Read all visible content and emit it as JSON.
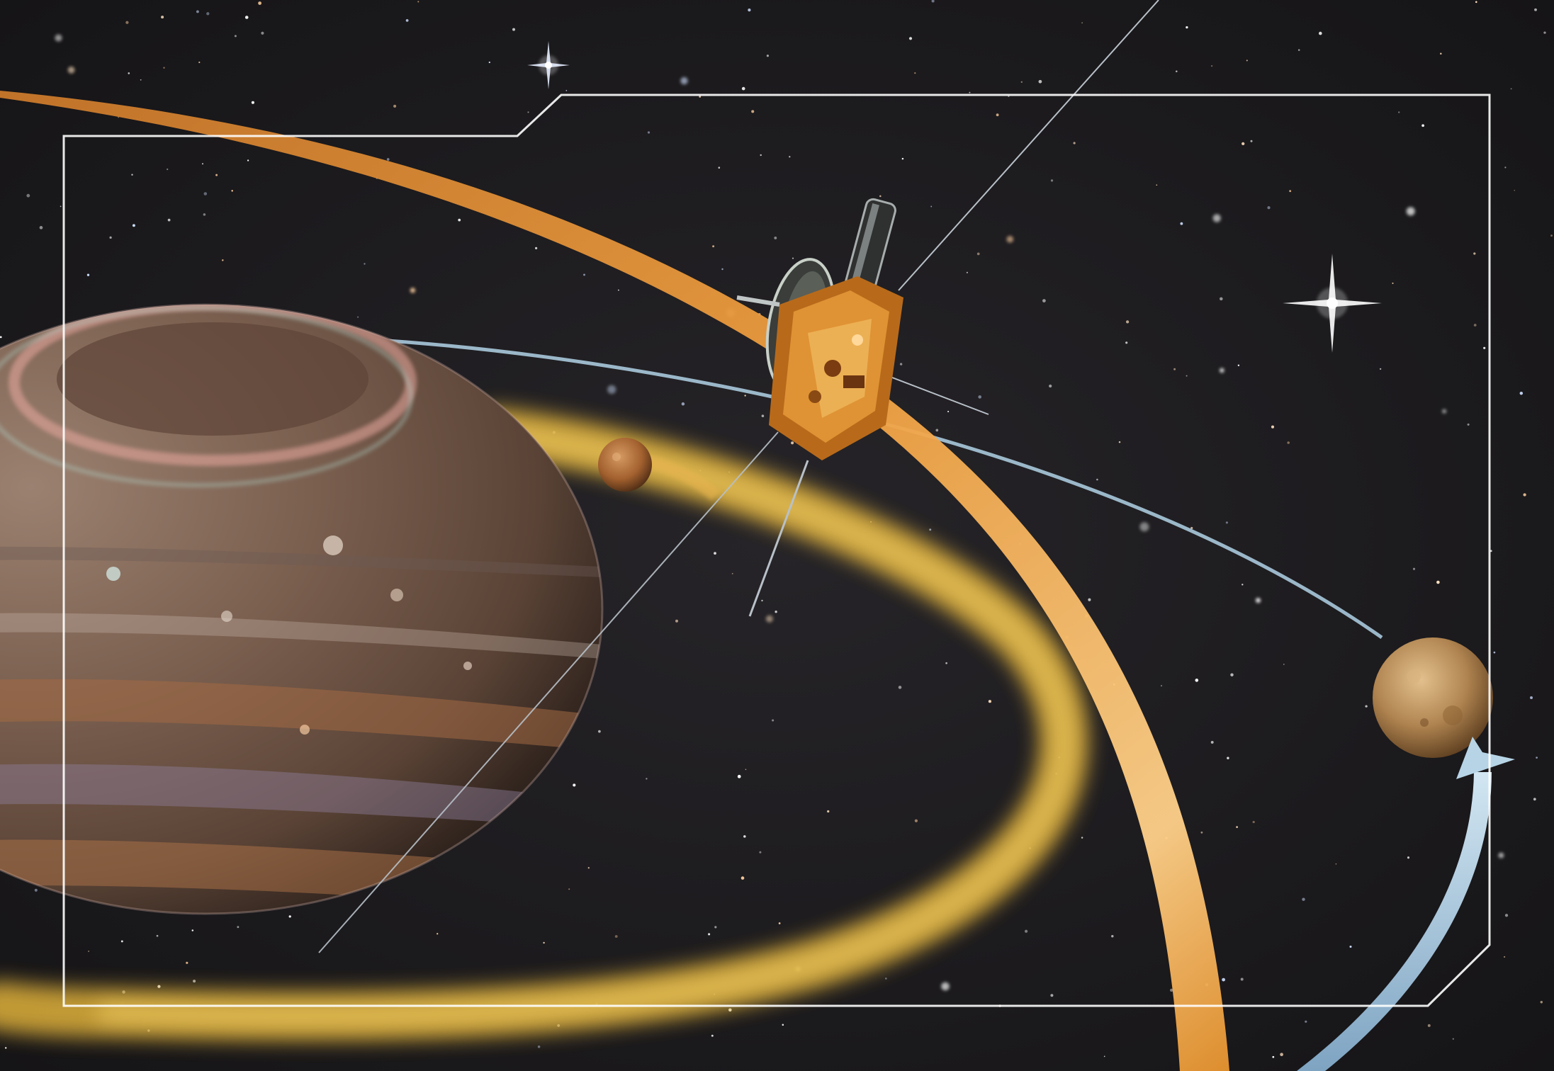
{
  "scene": {
    "subject": "spacecraft",
    "planet": "gas-giant",
    "moons": [
      "small-moon",
      "large-moon"
    ],
    "orbits": [
      "orange-orbit",
      "blue-orbit",
      "torus-ring"
    ],
    "colors": {
      "sky": "#1c1b1d",
      "orange_orbit": "#e8942f",
      "blue_orbit": "#a9c9dc",
      "torus": "#e0b13a",
      "frame": "#ffffff",
      "planet_base": "#7a5f4f"
    }
  }
}
